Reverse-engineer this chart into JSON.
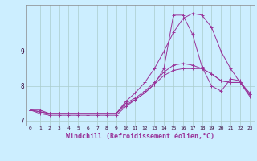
{
  "background_color": "#cceeff",
  "grid_color": "#aacccc",
  "line_color": "#993399",
  "marker": "+",
  "xlabel": "Windchill (Refroidissement éolien,°C)",
  "xlabel_fontsize": 6.0,
  "ylabel_values": [
    7,
    8,
    9
  ],
  "xlim": [
    -0.5,
    23.5
  ],
  "ylim": [
    6.85,
    10.35
  ],
  "x_ticks": [
    0,
    1,
    2,
    3,
    4,
    5,
    6,
    7,
    8,
    9,
    10,
    11,
    12,
    13,
    14,
    15,
    16,
    17,
    18,
    19,
    20,
    21,
    22,
    23
  ],
  "series": [
    [
      7.3,
      7.25,
      7.2,
      7.2,
      7.2,
      7.2,
      7.2,
      7.2,
      7.2,
      7.2,
      7.5,
      7.65,
      7.85,
      8.1,
      8.4,
      8.6,
      8.65,
      8.6,
      8.5,
      8.35,
      8.15,
      8.1,
      8.1,
      7.8
    ],
    [
      7.3,
      7.25,
      7.2,
      7.2,
      7.2,
      7.2,
      7.2,
      7.2,
      7.2,
      7.2,
      7.55,
      7.8,
      8.1,
      8.5,
      9.0,
      9.55,
      9.95,
      10.1,
      10.05,
      9.7,
      9.0,
      8.5,
      8.1,
      7.7
    ],
    [
      7.3,
      7.2,
      7.15,
      7.15,
      7.15,
      7.15,
      7.15,
      7.15,
      7.15,
      7.15,
      7.4,
      7.6,
      7.8,
      8.05,
      8.5,
      10.05,
      10.05,
      9.5,
      8.55,
      8.0,
      7.85,
      8.2,
      8.15,
      7.75
    ],
    [
      7.3,
      7.3,
      7.2,
      7.2,
      7.2,
      7.2,
      7.2,
      7.2,
      7.2,
      7.2,
      7.45,
      7.6,
      7.8,
      8.05,
      8.3,
      8.45,
      8.5,
      8.5,
      8.5,
      8.35,
      8.15,
      8.1,
      8.1,
      7.75
    ]
  ]
}
